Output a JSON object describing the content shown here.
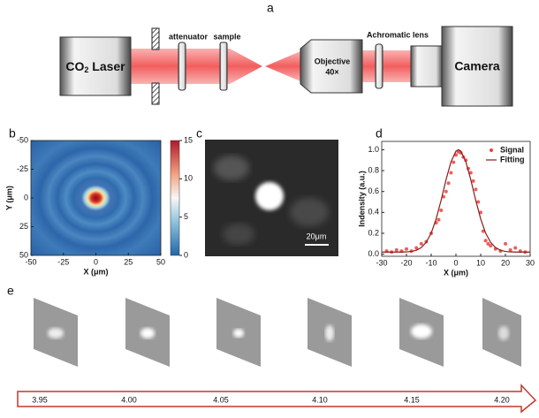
{
  "setup": {
    "label": "a",
    "laser": "CO",
    "laser_sub": "2",
    "laser_rest": " Laser",
    "attenuator": "attenuator",
    "sample": "sample",
    "objective": "Objective",
    "magnification": "40×",
    "lens": "Achromatic lens",
    "camera": "Camera"
  },
  "panel_c": {
    "label": "c",
    "scale_bar": "20μm"
  },
  "panel_e": {
    "label": "e",
    "ticks": [
      "3.95",
      "4.00",
      "4.05",
      "4.10",
      "4.15",
      "4.20"
    ]
  },
  "chart_data": [
    {
      "type": "heatmap",
      "label": "b",
      "xlabel": "X (μm)",
      "ylabel": "Y (μm)",
      "xlim": [
        -50,
        50
      ],
      "xticks": [
        -50,
        -25,
        0,
        25,
        50
      ],
      "ylim": [
        50,
        -50
      ],
      "yticks": [
        -50,
        -25,
        0,
        25,
        50
      ],
      "colorbar": {
        "lim": [
          0,
          15
        ],
        "ticks": [
          0,
          5,
          10,
          15
        ]
      }
    },
    {
      "type": "line",
      "label": "d",
      "xlabel": "X (μm)",
      "ylabel": "Indensity (a.u.)",
      "xlim": [
        -30,
        30
      ],
      "xticks": [
        -30,
        -20,
        -10,
        0,
        10,
        20,
        30
      ],
      "ylim": [
        -0.02,
        1.08
      ],
      "yticks": [
        {
          "value": 0,
          "label": "0.0"
        },
        0.2,
        0.4,
        0.6,
        0.8,
        {
          "value": 1,
          "label": "1.0"
        }
      ],
      "legend": "upper right",
      "series": [
        {
          "name": "Signal",
          "color": "#e8433f",
          "mode": "markers",
          "x": [
            -28,
            -26,
            -24,
            -22,
            -20,
            -18,
            -16,
            -14,
            -12,
            -10,
            -8,
            -7,
            -6,
            -5,
            -4,
            -3,
            -2,
            -1,
            0,
            1,
            2,
            3,
            4,
            5,
            6,
            7,
            8,
            9,
            10,
            11,
            12,
            13,
            14,
            16,
            18,
            20,
            22,
            24,
            26,
            28
          ],
          "values": [
            0.03,
            0.02,
            0.04,
            0.03,
            0.05,
            0.03,
            0.06,
            0.1,
            0.12,
            0.2,
            0.3,
            0.33,
            0.42,
            0.55,
            0.6,
            0.68,
            0.78,
            0.88,
            0.95,
            0.98,
            0.97,
            0.93,
            0.9,
            0.82,
            0.78,
            0.7,
            0.62,
            0.5,
            0.4,
            0.22,
            0.13,
            0.1,
            0.08,
            0.05,
            0.03,
            0.1,
            0.04,
            0.06,
            0.03,
            0.02
          ]
        },
        {
          "name": "Fitting",
          "color": "#8b1a1a",
          "mode": "line",
          "x": [
            -30,
            -28,
            -26,
            -24,
            -22,
            -20,
            -18,
            -16,
            -14,
            -12,
            -10,
            -8,
            -6,
            -4,
            -2,
            0,
            1,
            2,
            4,
            6,
            8,
            10,
            12,
            14,
            16,
            18,
            20,
            22,
            24,
            26,
            28,
            30
          ],
          "values": [
            0.02,
            0.02,
            0.02,
            0.02,
            0.02,
            0.022,
            0.026,
            0.038,
            0.063,
            0.114,
            0.202,
            0.338,
            0.516,
            0.713,
            0.885,
            0.986,
            1,
            0.986,
            0.885,
            0.713,
            0.516,
            0.338,
            0.202,
            0.114,
            0.063,
            0.038,
            0.026,
            0.022,
            0.02,
            0.02,
            0.02,
            0.02
          ]
        }
      ]
    }
  ]
}
